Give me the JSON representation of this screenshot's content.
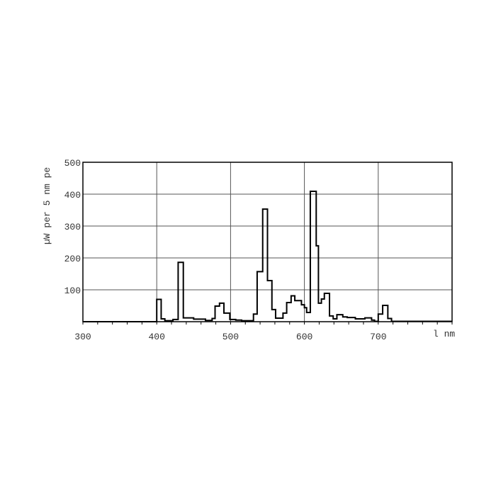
{
  "chart_data": {
    "type": "line",
    "style": "step",
    "title": "",
    "xlabel": "l nm",
    "ylabel": "µW per 5 nm pe",
    "xlim": [
      300,
      800
    ],
    "ylim": [
      0,
      500
    ],
    "x_ticks": [
      300,
      400,
      500,
      600,
      700
    ],
    "y_ticks": [
      100,
      200,
      300,
      400,
      500
    ],
    "grid": true,
    "line_color": "#000000",
    "x": [
      300,
      400,
      406,
      411,
      422,
      429,
      436,
      450,
      466,
      475,
      479,
      485,
      491,
      499,
      507,
      515,
      531,
      536,
      543.5,
      550,
      556,
      561,
      571,
      576,
      582,
      587,
      596,
      600,
      603,
      608,
      616,
      619,
      623,
      627,
      634,
      639,
      644,
      652,
      658,
      669,
      682,
      691,
      695,
      700,
      706,
      713,
      718,
      800
    ],
    "values": [
      0,
      70,
      9,
      3,
      7,
      186,
      12,
      8,
      4,
      10,
      49,
      58,
      27,
      7,
      5,
      3,
      24,
      157,
      353,
      129,
      38,
      11,
      27,
      60,
      81,
      66,
      53,
      44,
      29,
      409,
      238,
      58,
      71,
      89,
      18,
      9,
      22,
      15,
      13,
      9,
      12,
      5,
      1,
      24,
      51,
      10,
      1,
      1
    ]
  }
}
